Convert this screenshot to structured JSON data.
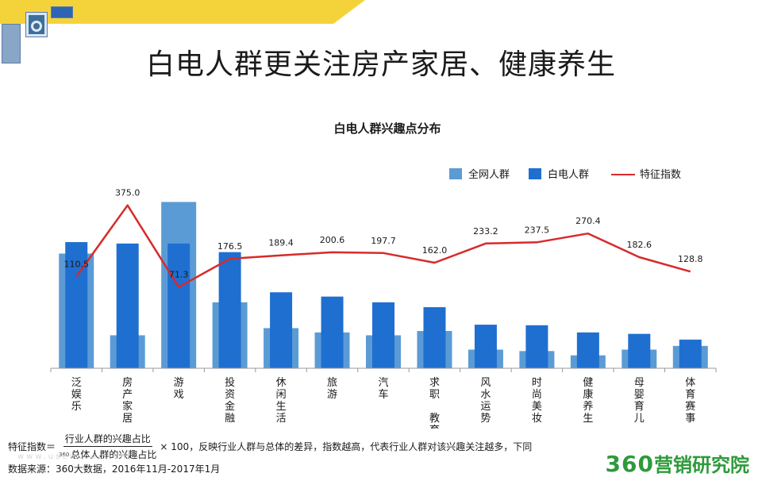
{
  "page": {
    "title": "白电人群更关注房产家居、健康养生",
    "formula": {
      "label": "特征指数＝",
      "numerator": "行业人群的兴趣占比",
      "denominator": "总体人群的兴趣占比",
      "denominator_prefix": "360",
      "multiplier": "× 100",
      "description": "，反映行业人群与总体的差异，指数越高，代表行业人群对该兴趣关注越多，下同"
    },
    "source": "数据来源：360大数据，2016年11月-2017年1月",
    "watermark": "www.useit.com.cn",
    "brand": {
      "number": "360",
      "text": "营销研究院"
    },
    "colors": {
      "overall_bar": "#5b9bd5",
      "white_goods_bar": "#1f6fd1",
      "index_line": "#d62b2b",
      "top_band": "#f4d33a",
      "brand": "#2e9a3b"
    }
  },
  "chart_data": {
    "type": "bar",
    "title": "白电人群兴趣点分布",
    "categories": [
      "泛娱乐",
      "房产家居",
      "游戏",
      "投资金融",
      "休闲生活",
      "旅游",
      "汽车",
      "求职教育",
      "风水运势",
      "时尚美妆",
      "健康养生",
      "母婴育儿",
      "体育赛事"
    ],
    "category_lines": [
      [
        "泛",
        "娱",
        "乐"
      ],
      [
        "房",
        "产",
        "家",
        "居"
      ],
      [
        "游",
        "戏"
      ],
      [
        "投",
        "资",
        "金",
        "融"
      ],
      [
        "休",
        "闲",
        "生",
        "活"
      ],
      [
        "旅",
        "游"
      ],
      [
        "汽",
        "车"
      ],
      [
        "求",
        "职",
        "",
        "教",
        "育"
      ],
      [
        "风",
        "水",
        "运",
        "势"
      ],
      [
        "时",
        "尚",
        "美",
        "妆"
      ],
      [
        "健",
        "康",
        "养",
        "生"
      ],
      [
        "母",
        "婴",
        "育",
        "儿"
      ],
      [
        "体",
        "育",
        "赛",
        "事"
      ]
    ],
    "series": [
      {
        "name": "全网人群",
        "type": "bar",
        "values": [
          40.0,
          11.5,
          58.0,
          23.0,
          14.0,
          12.5,
          11.5,
          13.0,
          6.5,
          6.0,
          4.5,
          6.5,
          7.8
        ]
      },
      {
        "name": "白电人群",
        "type": "bar",
        "values": [
          44.0,
          43.5,
          43.5,
          40.5,
          26.5,
          25.0,
          23.0,
          21.3,
          15.2,
          15.0,
          12.5,
          12.0,
          10.0
        ]
      },
      {
        "name": "特征指数",
        "type": "line",
        "values": [
          110.5,
          375.0,
          71.3,
          176.5,
          189.4,
          200.6,
          197.7,
          162.0,
          233.2,
          237.5,
          270.4,
          182.6,
          128.8
        ]
      }
    ],
    "line_labels": [
      "110.5",
      "375.0",
      "71.3",
      "176.5",
      "189.4",
      "200.6",
      "197.7",
      "162.0",
      "233.2",
      "237.5",
      "270.4",
      "182.6",
      "128.8"
    ],
    "bar_ylim": [
      0,
      62
    ],
    "line_ylim": [
      -230,
      430
    ],
    "legend": {
      "placement": "top-right",
      "items": [
        "全网人群",
        "白电人群",
        "特征指数"
      ]
    },
    "grid": false
  }
}
